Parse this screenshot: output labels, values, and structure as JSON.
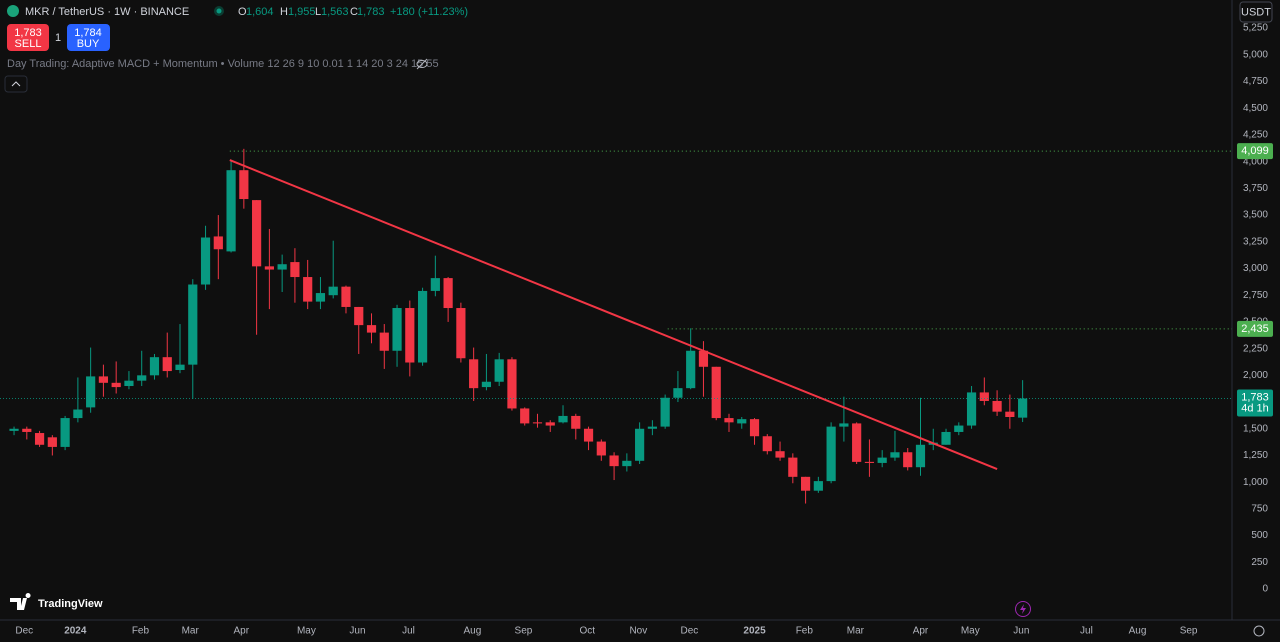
{
  "header": {
    "symbol": "MKR / TetherUS · 1W · BINANCE",
    "o_label": "O",
    "open": "1,604",
    "h_label": "H",
    "high": "1,955",
    "l_label": "L",
    "low": "1,563",
    "c_label": "C",
    "close": "1,783",
    "change": "+180 (+11.23%)",
    "sell_price": "1,783",
    "sell": "SELL",
    "quantity": "1",
    "buy_price": "1,784",
    "buy": "BUY",
    "indicator": "Day Trading: Adaptive MACD + Momentum • Volume 12 26 9 10 0.01 1 14 20 3 24 15 55",
    "currency": "USDT",
    "brand": "TradingView"
  },
  "chart_data": {
    "type": "candlestick",
    "up_color": "#089981",
    "down_color": "#f23645",
    "candles": [
      [
        1480,
        1520,
        1440,
        1500
      ],
      [
        1500,
        1520,
        1400,
        1470
      ],
      [
        1460,
        1480,
        1330,
        1350
      ],
      [
        1420,
        1440,
        1250,
        1330
      ],
      [
        1330,
        1620,
        1300,
        1600
      ],
      [
        1600,
        1980,
        1560,
        1680
      ],
      [
        1700,
        2260,
        1650,
        1990
      ],
      [
        1990,
        2100,
        1800,
        1930
      ],
      [
        1930,
        2130,
        1830,
        1890
      ],
      [
        1900,
        2040,
        1870,
        1950
      ],
      [
        1950,
        2230,
        1900,
        2000
      ],
      [
        2000,
        2200,
        1960,
        2170
      ],
      [
        2170,
        2400,
        1980,
        2040
      ],
      [
        2050,
        2480,
        2020,
        2100
      ],
      [
        2100,
        2900,
        1780,
        2850
      ],
      [
        2850,
        3400,
        2800,
        3290
      ],
      [
        3300,
        3500,
        2900,
        3180
      ],
      [
        3160,
        4020,
        3150,
        3920
      ],
      [
        3920,
        4120,
        3560,
        3650
      ],
      [
        3640,
        3640,
        2380,
        3020
      ],
      [
        3020,
        3370,
        2620,
        2990
      ],
      [
        2990,
        3130,
        2780,
        3040
      ],
      [
        3060,
        3190,
        2680,
        2920
      ],
      [
        2920,
        3080,
        2620,
        2690
      ],
      [
        2690,
        2920,
        2620,
        2770
      ],
      [
        2750,
        3260,
        2720,
        2830
      ],
      [
        2830,
        2840,
        2580,
        2640
      ],
      [
        2640,
        2640,
        2200,
        2470
      ],
      [
        2470,
        2580,
        2300,
        2400
      ],
      [
        2400,
        2480,
        2060,
        2230
      ],
      [
        2230,
        2660,
        2080,
        2630
      ],
      [
        2630,
        2700,
        1990,
        2120
      ],
      [
        2120,
        2820,
        2090,
        2790
      ],
      [
        2790,
        3120,
        2740,
        2910
      ],
      [
        2910,
        2920,
        2500,
        2630
      ],
      [
        2630,
        2680,
        2120,
        2160
      ],
      [
        2150,
        2260,
        1760,
        1880
      ],
      [
        1890,
        2200,
        1860,
        1940
      ],
      [
        1940,
        2210,
        1900,
        2150
      ],
      [
        2150,
        2170,
        1670,
        1690
      ],
      [
        1690,
        1700,
        1530,
        1550
      ],
      [
        1560,
        1640,
        1510,
        1550
      ],
      [
        1560,
        1580,
        1470,
        1530
      ],
      [
        1560,
        1720,
        1550,
        1620
      ],
      [
        1620,
        1640,
        1400,
        1500
      ],
      [
        1500,
        1520,
        1300,
        1380
      ],
      [
        1380,
        1400,
        1200,
        1250
      ],
      [
        1250,
        1280,
        1020,
        1150
      ],
      [
        1150,
        1270,
        1100,
        1200
      ],
      [
        1200,
        1560,
        1170,
        1500
      ],
      [
        1500,
        1580,
        1440,
        1520
      ],
      [
        1520,
        1820,
        1500,
        1790
      ],
      [
        1790,
        2040,
        1750,
        1880
      ],
      [
        1880,
        2440,
        1870,
        2230
      ],
      [
        2230,
        2320,
        1800,
        2080
      ],
      [
        2080,
        2080,
        1580,
        1600
      ],
      [
        1600,
        1640,
        1470,
        1560
      ],
      [
        1550,
        1610,
        1500,
        1590
      ],
      [
        1590,
        1600,
        1350,
        1430
      ],
      [
        1430,
        1450,
        1260,
        1290
      ],
      [
        1290,
        1380,
        1200,
        1230
      ],
      [
        1230,
        1270,
        990,
        1050
      ],
      [
        1050,
        1050,
        800,
        920
      ],
      [
        920,
        1050,
        900,
        1010
      ],
      [
        1010,
        1560,
        990,
        1520
      ],
      [
        1520,
        1800,
        1380,
        1550
      ],
      [
        1550,
        1560,
        1170,
        1190
      ],
      [
        1190,
        1400,
        1050,
        1180
      ],
      [
        1180,
        1300,
        1140,
        1230
      ],
      [
        1230,
        1480,
        1200,
        1280
      ],
      [
        1280,
        1320,
        1110,
        1140
      ],
      [
        1140,
        1790,
        1060,
        1350
      ],
      [
        1350,
        1500,
        1300,
        1370
      ],
      [
        1350,
        1500,
        1350,
        1470
      ],
      [
        1470,
        1560,
        1440,
        1530
      ],
      [
        1530,
        1900,
        1500,
        1840
      ],
      [
        1840,
        1980,
        1720,
        1760
      ],
      [
        1760,
        1860,
        1620,
        1660
      ],
      [
        1660,
        1820,
        1500,
        1610
      ],
      [
        1604,
        1955,
        1563,
        1783
      ]
    ],
    "xlim": [
      -1.1,
      95.4
    ],
    "xticks": [
      {
        "value": 0.8,
        "label": "Dec"
      },
      {
        "value": 4.8,
        "label": "2024"
      },
      {
        "value": 9.9,
        "label": "Feb"
      },
      {
        "value": 13.8,
        "label": "Mar"
      },
      {
        "value": 17.8,
        "label": "Apr"
      },
      {
        "value": 22.9,
        "label": "May"
      },
      {
        "value": 26.9,
        "label": "Jun"
      },
      {
        "value": 30.9,
        "label": "Jul"
      },
      {
        "value": 35.9,
        "label": "Aug"
      },
      {
        "value": 39.9,
        "label": "Sep"
      },
      {
        "value": 44.9,
        "label": "Oct"
      },
      {
        "value": 48.9,
        "label": "Nov"
      },
      {
        "value": 52.9,
        "label": "Dec"
      },
      {
        "value": 58.0,
        "label": "2025"
      },
      {
        "value": 61.9,
        "label": "Feb"
      },
      {
        "value": 65.9,
        "label": "Mar"
      },
      {
        "value": 71.0,
        "label": "Apr"
      },
      {
        "value": 74.9,
        "label": "May"
      },
      {
        "value": 78.9,
        "label": "Jun"
      },
      {
        "value": 84.0,
        "label": "Jul"
      },
      {
        "value": 88.0,
        "label": "Aug"
      },
      {
        "value": 92.0,
        "label": "Sep"
      }
    ],
    "ylim": [
      -290,
      5513
    ],
    "yticks": [
      0,
      250,
      500,
      750,
      {
        "value": 1000,
        "label": "1,000"
      },
      {
        "value": 1250,
        "label": "1,250"
      },
      {
        "value": 1500,
        "label": "1,500"
      },
      {
        "value": 1750,
        "label": "1,750"
      },
      {
        "value": 2000,
        "label": "2,000"
      },
      {
        "value": 2250,
        "label": "2,250"
      },
      {
        "value": 2500,
        "label": "2,500"
      },
      {
        "value": 2750,
        "label": "2,750"
      },
      {
        "value": 3000,
        "label": "3,000"
      },
      {
        "value": 3250,
        "label": "3,250"
      },
      {
        "value": 3500,
        "label": "3,500"
      },
      {
        "value": 3750,
        "label": "3,750"
      },
      {
        "value": 4000,
        "label": "4,000"
      },
      {
        "value": 4250,
        "label": "4,250"
      },
      {
        "value": 4500,
        "label": "4,500"
      },
      {
        "value": 4750,
        "label": "4,750"
      },
      {
        "value": 5000,
        "label": "5,000"
      },
      {
        "value": 5250,
        "label": "5,250"
      }
    ],
    "grid": false,
    "price_lines": [
      {
        "value": 4099,
        "label": "4,099",
        "start": 16.9
      },
      {
        "value": 2435,
        "label": "2,435",
        "start": 51.2
      }
    ],
    "last_price": {
      "value": 1783,
      "label": "1,783",
      "countdown": "4d 1h"
    },
    "trendline": {
      "x": [
        16.9,
        77.0
      ],
      "y": [
        4015,
        1123
      ],
      "color": "#f23645"
    }
  }
}
